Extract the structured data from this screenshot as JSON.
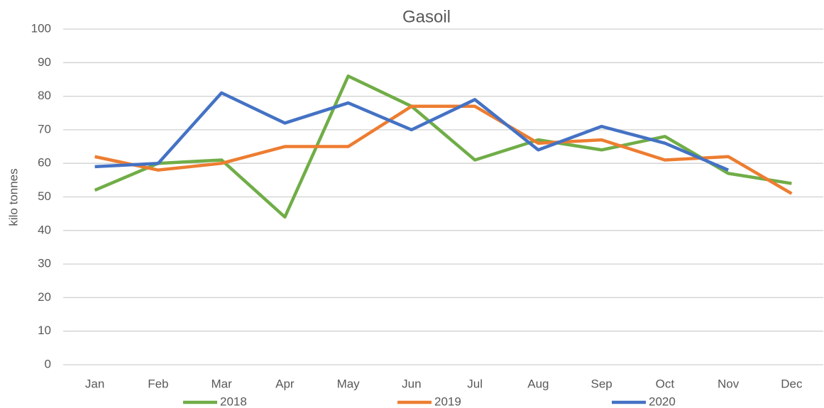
{
  "chart_data": {
    "type": "line",
    "title": "Gasoil",
    "y_label": "kilo tonnes",
    "categories": [
      "Jan",
      "Feb",
      "Mar",
      "Apr",
      "May",
      "Jun",
      "Jul",
      "Aug",
      "Sep",
      "Oct",
      "Nov",
      "Dec"
    ],
    "series": [
      {
        "name": "2018",
        "color": "#70ad47",
        "values": [
          52,
          60,
          61,
          44,
          86,
          77,
          61,
          67,
          64,
          68,
          57,
          54
        ]
      },
      {
        "name": "2019",
        "color": "#ed7d31",
        "values": [
          62,
          58,
          60,
          65,
          65,
          77,
          77,
          66,
          67,
          61,
          62,
          51
        ]
      },
      {
        "name": "2020",
        "color": "#4472c4",
        "values": [
          59,
          60,
          81,
          72,
          78,
          70,
          79,
          64,
          71,
          66,
          58,
          null
        ]
      }
    ],
    "ylim": [
      0,
      100
    ],
    "yticks": [
      0,
      10,
      20,
      30,
      40,
      50,
      60,
      70,
      80,
      90,
      100
    ],
    "grid": true,
    "legend": "bottom"
  }
}
